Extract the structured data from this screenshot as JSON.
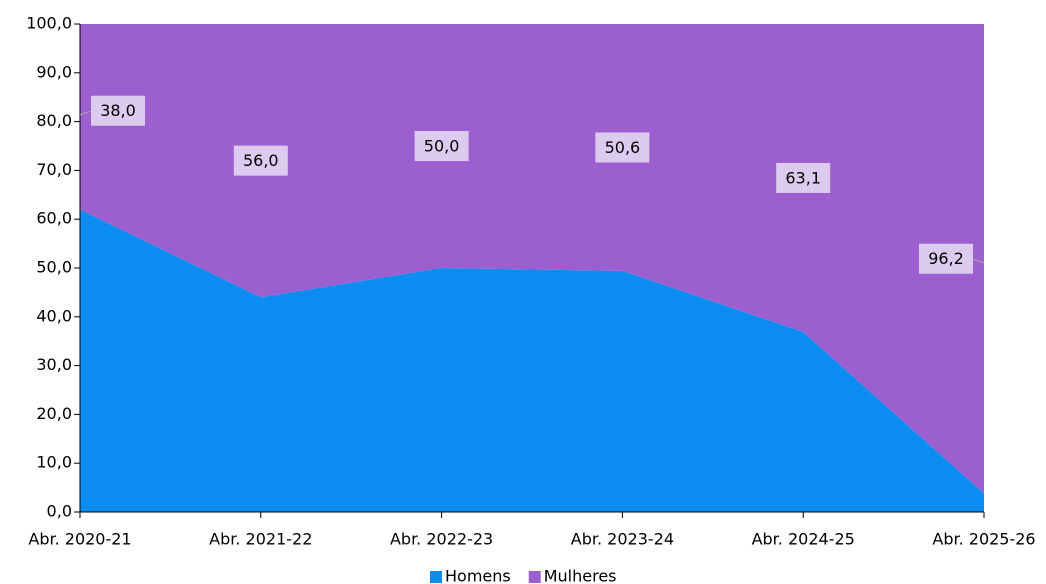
{
  "chart_data": {
    "type": "stacked-area",
    "categories": [
      "Abr. 2020-21",
      "Abr. 2021-22",
      "Abr. 2022-23",
      "Abr. 2023-24",
      "Abr. 2024-25",
      "Abr. 2025-26"
    ],
    "series": [
      {
        "name": "Homens",
        "color": "#0a8cf0",
        "values": [
          62.0,
          44.0,
          50.0,
          49.4,
          36.9,
          3.8
        ]
      },
      {
        "name": "Mulheres",
        "color": "#9b5fcf",
        "values": [
          38.0,
          56.0,
          50.0,
          50.6,
          63.1,
          96.2
        ],
        "value_labels": [
          "38,0",
          "56,0",
          "50,0",
          "50,6",
          "63,1",
          "96,2"
        ]
      }
    ],
    "ylim": [
      0,
      100
    ],
    "yticks": [
      {
        "value": 0,
        "label": "0,0"
      },
      {
        "value": 10,
        "label": "10,0"
      },
      {
        "value": 20,
        "label": "20,0"
      },
      {
        "value": 30,
        "label": "30,0"
      },
      {
        "value": 40,
        "label": "40,0"
      },
      {
        "value": 50,
        "label": "50,0"
      },
      {
        "value": 60,
        "label": "60,0"
      },
      {
        "value": 70,
        "label": "70,0"
      },
      {
        "value": 80,
        "label": "80,0"
      },
      {
        "value": 90,
        "label": "90,0"
      },
      {
        "value": 100,
        "label": "100,0"
      }
    ],
    "legend": "bottom"
  }
}
